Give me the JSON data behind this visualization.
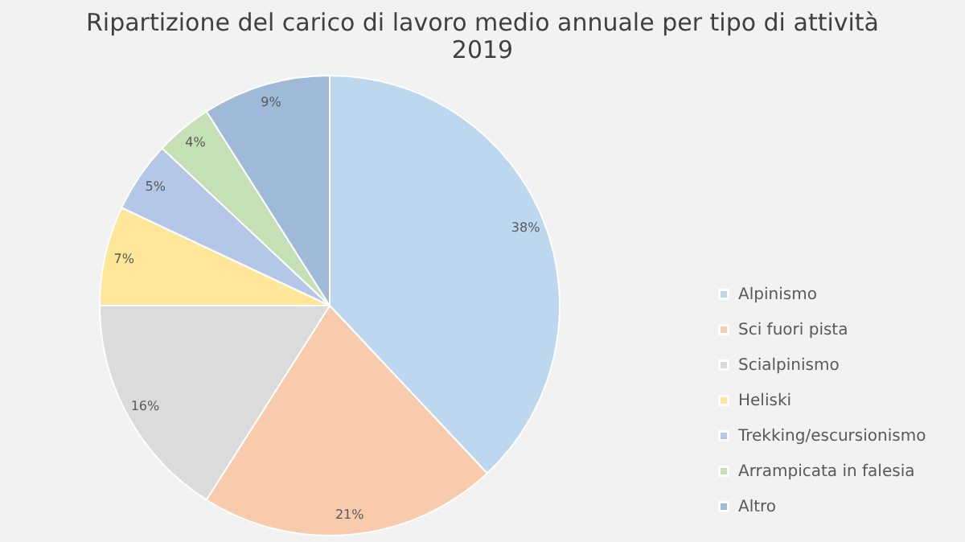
{
  "chart_data": {
    "type": "pie",
    "title": "Ripartizione del carico di lavoro medio annuale per tipo di attività",
    "subtitle": "2019",
    "categories": [
      "Alpinismo",
      "Sci fuori pista",
      "Scialpinismo",
      "Heliski",
      "Trekking/escursionismo",
      "Arrampicata in falesia",
      "Altro"
    ],
    "values": [
      38,
      21,
      16,
      7,
      5,
      4,
      9
    ],
    "value_labels": [
      "38%",
      "21%",
      "16%",
      "7%",
      "5%",
      "4%",
      "9%"
    ],
    "colors": [
      "#bdd7ee",
      "#f8cbad",
      "#dbdbdb",
      "#ffe699",
      "#b4c7e7",
      "#c5e0b4",
      "#9fb9d8"
    ],
    "legend": "right"
  }
}
